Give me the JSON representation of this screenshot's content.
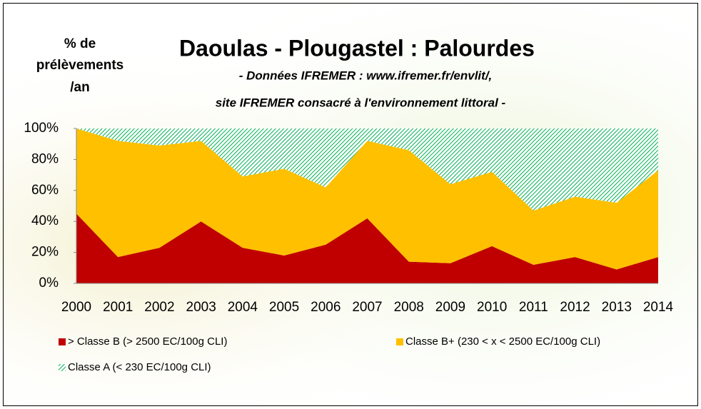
{
  "chart_data": {
    "type": "stacked_area",
    "title": "Daoulas - Plougastel : Palourdes",
    "subtitle": [
      "- Données IFREMER :  www.ifremer.fr/envlit/,",
      "site IFREMER consacré à l'environnement littoral -"
    ],
    "ylabel": [
      "% de",
      "prélèvements",
      "/an"
    ],
    "categories": [
      "2000",
      "2001",
      "2002",
      "2003",
      "2004",
      "2005",
      "2006",
      "2007",
      "2008",
      "2009",
      "2010",
      "2011",
      "2012",
      "2013",
      "2014"
    ],
    "series": [
      {
        "name": "> Classe B (> 2500 EC/100g CLI)",
        "color": "#c00000",
        "values": [
          45,
          17,
          23,
          40,
          23,
          18,
          25,
          42,
          14,
          13,
          24,
          12,
          17,
          9,
          17
        ]
      },
      {
        "name": "Classe B+ (230 < x < 2500 EC/100g CLI)",
        "color": "#ffc000",
        "values": [
          55,
          75,
          66,
          52,
          46,
          56,
          37,
          50,
          72,
          51,
          48,
          35,
          39,
          43,
          56
        ]
      },
      {
        "name": "Classe A (< 230 EC/100g CLI)",
        "color": "#00b050",
        "values": [
          0,
          8,
          11,
          8,
          31,
          26,
          38,
          8,
          14,
          36,
          28,
          53,
          44,
          48,
          27
        ]
      }
    ],
    "ylim": [
      0,
      100
    ],
    "yticks": [
      {
        "value": 0,
        "label": "0%"
      },
      {
        "value": 20,
        "label": "20%"
      },
      {
        "value": 40,
        "label": "40%"
      },
      {
        "value": 60,
        "label": "60%"
      },
      {
        "value": 80,
        "label": "80%"
      },
      {
        "value": 100,
        "label": "100%"
      }
    ]
  }
}
